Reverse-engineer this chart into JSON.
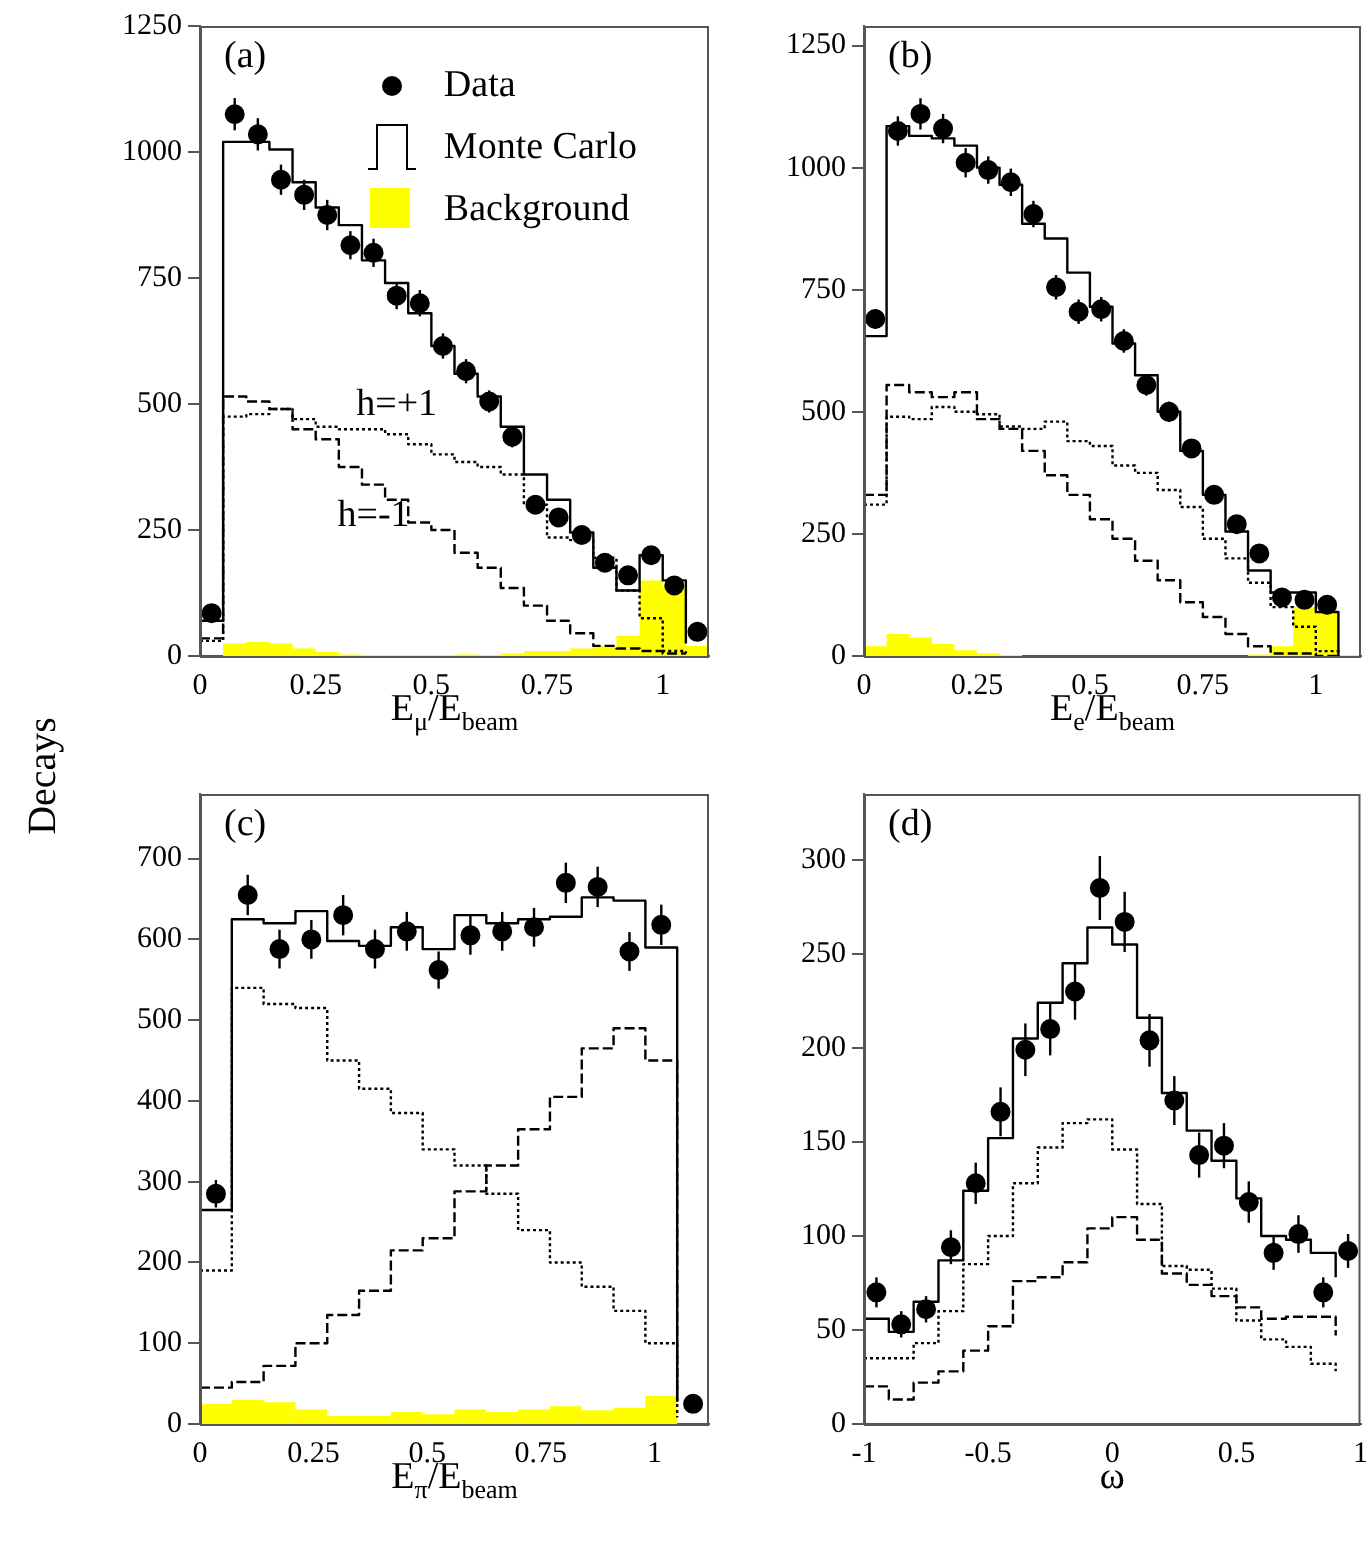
{
  "chart_data": [
    {
      "type": "histogram",
      "xlabel": "E$_{μ}$/E$_{beam}$",
      "ylabel": "Decays",
      "annotations": [
        "(a)"
      ],
      "legend": "top right",
      "xlim": [
        0,
        1.1
      ],
      "ylim": [
        0,
        1250
      ],
      "xticks": [
        0,
        0.25,
        0.5,
        0.75,
        1
      ],
      "yticks": [
        0,
        250,
        500,
        750,
        1000,
        1250
      ],
      "bins": [
        0,
        0.05,
        0.1,
        0.15,
        0.2,
        0.25,
        0.3,
        0.35,
        0.4,
        0.45,
        0.5,
        0.55,
        0.6,
        0.65,
        0.7,
        0.75,
        0.8,
        0.85,
        0.9,
        0.95,
        1,
        1.05,
        1.1
      ],
      "series": [
        {
          "name": "Data",
          "type": "scatter",
          "marker": "circle",
          "color": "#000000",
          "x": [
            0.025,
            0.075,
            0.125,
            0.175,
            0.225,
            0.275,
            0.325,
            0.375,
            0.425,
            0.475,
            0.525,
            0.575,
            0.625,
            0.675,
            0.725,
            0.775,
            0.825,
            0.875,
            0.925,
            0.975,
            1.025,
            1.075
          ],
          "values": [
            85,
            1075,
            1035,
            945,
            915,
            875,
            815,
            800,
            715,
            700,
            615,
            565,
            505,
            435,
            300,
            275,
            240,
            185,
            160,
            200,
            140,
            48
          ],
          "errors": [
            10,
            32,
            32,
            30,
            30,
            30,
            28,
            28,
            27,
            26,
            25,
            24,
            22,
            21,
            17,
            17,
            16,
            14,
            13,
            14,
            12,
            7
          ]
        },
        {
          "name": "Monte Carlo",
          "type": "step",
          "line_style": "solid",
          "x": [
            0,
            0.05,
            0.1,
            0.15,
            0.2,
            0.25,
            0.3,
            0.35,
            0.4,
            0.45,
            0.5,
            0.55,
            0.6,
            0.65,
            0.7,
            0.75,
            0.8,
            0.85,
            0.9,
            0.95,
            1,
            1.05
          ],
          "color": "#000000",
          "values": [
            70,
            1020,
            1020,
            1005,
            940,
            890,
            855,
            785,
            740,
            680,
            615,
            560,
            515,
            455,
            360,
            310,
            245,
            175,
            130,
            200,
            150,
            25
          ]
        },
        {
          "name": "h=+1",
          "type": "step",
          "line_style": "dotted",
          "x": [
            0,
            0.05,
            0.1,
            0.15,
            0.2,
            0.25,
            0.3,
            0.35,
            0.4,
            0.45,
            0.5,
            0.55,
            0.6,
            0.65,
            0.7,
            0.75,
            0.8,
            0.85,
            0.9,
            0.95,
            1,
            1.05
          ],
          "color": "#000000",
          "values": [
            30,
            475,
            480,
            490,
            470,
            455,
            450,
            450,
            440,
            420,
            400,
            385,
            375,
            360,
            300,
            235,
            230,
            195,
            130,
            75,
            10,
            5
          ]
        },
        {
          "name": "h=-1",
          "type": "step",
          "line_style": "dashed",
          "x": [
            0,
            0.05,
            0.1,
            0.15,
            0.2,
            0.25,
            0.3,
            0.35,
            0.4,
            0.45,
            0.5,
            0.55,
            0.6,
            0.65,
            0.7,
            0.75,
            0.8,
            0.85,
            0.9,
            0.95,
            1,
            1.05
          ],
          "color": "#000000",
          "values": [
            35,
            515,
            505,
            490,
            450,
            430,
            375,
            340,
            310,
            265,
            250,
            205,
            175,
            135,
            100,
            70,
            45,
            20,
            15,
            10,
            5,
            5
          ]
        },
        {
          "name": "Background",
          "color": "#ffff00",
          "values": [
            0,
            25,
            28,
            25,
            15,
            8,
            3,
            2,
            2,
            2,
            2,
            3,
            2,
            5,
            10,
            10,
            15,
            20,
            40,
            150,
            140,
            20
          ]
        }
      ]
    },
    {
      "type": "histogram",
      "xlabel": "E$_{e}$/E$_{beam}$",
      "annotations": [
        "(b)"
      ],
      "xlim": [
        0,
        1.1
      ],
      "ylim": [
        0,
        1290
      ],
      "xticks": [
        0,
        0.25,
        0.5,
        0.75,
        1
      ],
      "yticks": [
        0,
        250,
        500,
        750,
        1000,
        1250
      ],
      "bins": [
        0,
        0.05,
        0.1,
        0.15,
        0.2,
        0.25,
        0.3,
        0.35,
        0.4,
        0.45,
        0.5,
        0.55,
        0.6,
        0.65,
        0.7,
        0.75,
        0.8,
        0.85,
        0.9,
        0.95,
        1,
        1.05,
        1.1
      ],
      "series": [
        {
          "type": "scatter",
          "marker": "circle",
          "color": "#000000",
          "x": [
            0.025,
            0.075,
            0.125,
            0.175,
            0.225,
            0.275,
            0.325,
            0.375,
            0.425,
            0.475,
            0.525,
            0.575,
            0.625,
            0.675,
            0.725,
            0.775,
            0.825,
            0.875,
            0.925,
            0.975,
            1.025
          ],
          "values": [
            690,
            1075,
            1110,
            1080,
            1010,
            995,
            970,
            905,
            755,
            705,
            710,
            645,
            555,
            500,
            425,
            330,
            270,
            210,
            120,
            115,
            105
          ],
          "errors": [
            20,
            30,
            32,
            30,
            30,
            28,
            28,
            27,
            25,
            25,
            25,
            24,
            22,
            21,
            19,
            17,
            15,
            13,
            10,
            10,
            10
          ]
        },
        {
          "type": "step",
          "line_style": "solid",
          "x": [
            0,
            0.05,
            0.1,
            0.15,
            0.2,
            0.25,
            0.3,
            0.35,
            0.4,
            0.45,
            0.5,
            0.55,
            0.6,
            0.65,
            0.7,
            0.75,
            0.8,
            0.85,
            0.9,
            0.95,
            1,
            1.05
          ],
          "color": "#000000",
          "values": [
            655,
            1085,
            1065,
            1060,
            1045,
            1000,
            965,
            885,
            855,
            785,
            715,
            640,
            575,
            500,
            420,
            330,
            255,
            175,
            130,
            130,
            90,
            0
          ]
        },
        {
          "type": "step",
          "line_style": "dotted",
          "x": [
            0,
            0.05,
            0.1,
            0.15,
            0.2,
            0.25,
            0.3,
            0.35,
            0.4,
            0.45,
            0.5,
            0.55,
            0.6,
            0.65,
            0.7,
            0.75,
            0.8,
            0.85,
            0.9,
            0.95,
            1,
            1.05
          ],
          "color": "#000000",
          "values": [
            310,
            490,
            485,
            510,
            500,
            495,
            470,
            465,
            480,
            440,
            430,
            390,
            375,
            340,
            305,
            240,
            200,
            150,
            100,
            60,
            10,
            0
          ]
        },
        {
          "type": "step",
          "line_style": "dashed",
          "x": [
            0,
            0.05,
            0.1,
            0.15,
            0.2,
            0.25,
            0.3,
            0.35,
            0.4,
            0.45,
            0.5,
            0.55,
            0.6,
            0.65,
            0.7,
            0.75,
            0.8,
            0.85,
            0.9,
            0.95,
            1,
            1.05
          ],
          "color": "#000000",
          "values": [
            330,
            555,
            540,
            530,
            540,
            485,
            465,
            420,
            370,
            330,
            280,
            240,
            195,
            155,
            110,
            80,
            45,
            20,
            5,
            5,
            0,
            0
          ]
        },
        {
          "color": "#ffff00",
          "values": [
            20,
            45,
            38,
            25,
            12,
            5,
            2,
            0,
            0,
            0,
            0,
            0,
            0,
            0,
            0,
            0,
            0,
            3,
            20,
            100,
            90,
            2
          ]
        }
      ]
    },
    {
      "type": "histogram",
      "xlabel": "E$_{π}$/E$_{beam}$",
      "annotations": [
        "(c)"
      ],
      "xlim": [
        0,
        1.12
      ],
      "ylim": [
        0,
        780
      ],
      "xticks": [
        0,
        0.25,
        0.5,
        0.75,
        1
      ],
      "yticks": [
        0,
        100,
        200,
        300,
        400,
        500,
        600,
        700
      ],
      "bins": [
        0,
        0.07,
        0.14,
        0.21,
        0.28,
        0.35,
        0.42,
        0.49,
        0.56,
        0.63,
        0.7,
        0.77,
        0.84,
        0.91,
        0.98,
        1.05,
        1.12
      ],
      "series": [
        {
          "type": "scatter",
          "marker": "circle",
          "color": "#000000",
          "x": [
            0.035,
            0.105,
            0.175,
            0.245,
            0.315,
            0.385,
            0.455,
            0.525,
            0.595,
            0.665,
            0.735,
            0.805,
            0.875,
            0.945,
            1.015,
            1.085
          ],
          "values": [
            285,
            655,
            588,
            600,
            630,
            588,
            610,
            562,
            605,
            610,
            615,
            670,
            665,
            585,
            618,
            25
          ],
          "errors": [
            17,
            25,
            24,
            24,
            25,
            24,
            24,
            23,
            24,
            24,
            24,
            25,
            25,
            24,
            25,
            5
          ]
        },
        {
          "type": "step",
          "line_style": "solid",
          "x": [
            0,
            0.07,
            0.14,
            0.21,
            0.28,
            0.35,
            0.42,
            0.49,
            0.56,
            0.63,
            0.7,
            0.77,
            0.84,
            0.91,
            0.98,
            1.05
          ],
          "color": "#000000",
          "values": [
            265,
            625,
            620,
            635,
            598,
            592,
            615,
            588,
            630,
            620,
            625,
            628,
            652,
            648,
            590,
            28
          ]
        },
        {
          "type": "step",
          "line_style": "dotted",
          "x": [
            0,
            0.07,
            0.14,
            0.21,
            0.28,
            0.35,
            0.42,
            0.49,
            0.56,
            0.63,
            0.7,
            0.77,
            0.84,
            0.91,
            0.98,
            1.05
          ],
          "color": "#000000",
          "values": [
            190,
            540,
            520,
            515,
            450,
            415,
            385,
            340,
            320,
            285,
            240,
            200,
            170,
            140,
            100,
            8
          ]
        },
        {
          "type": "step",
          "line_style": "dashed",
          "x": [
            0,
            0.07,
            0.14,
            0.21,
            0.28,
            0.35,
            0.42,
            0.49,
            0.56,
            0.63,
            0.7,
            0.77,
            0.84,
            0.91,
            0.98,
            1.05
          ],
          "color": "#000000",
          "values": [
            45,
            52,
            72,
            100,
            135,
            165,
            215,
            230,
            288,
            320,
            365,
            405,
            465,
            490,
            450,
            28
          ]
        },
        {
          "color": "#ffff00",
          "values": [
            25,
            30,
            27,
            18,
            10,
            10,
            15,
            12,
            18,
            15,
            18,
            22,
            17,
            20,
            35,
            0
          ]
        }
      ]
    },
    {
      "type": "step",
      "xlabel": "ω",
      "annotations": [
        "(d)"
      ],
      "xlim": [
        -1,
        1
      ],
      "ylim": [
        0,
        335
      ],
      "xticks": [
        -1,
        -0.5,
        0,
        0.5,
        1
      ],
      "yticks": [
        0,
        50,
        100,
        150,
        200,
        250,
        300
      ],
      "series": [
        {
          "type": "scatter",
          "marker": "circle",
          "color": "#000000",
          "x": [
            -0.95,
            -0.85,
            -0.75,
            -0.65,
            -0.55,
            -0.45,
            -0.35,
            -0.25,
            -0.15,
            -0.05,
            0.05,
            0.15,
            0.25,
            0.35,
            0.45,
            0.55,
            0.65,
            0.75,
            0.85,
            0.95
          ],
          "values": [
            70,
            53,
            61,
            94,
            128,
            166,
            199,
            210,
            230,
            285,
            267,
            204,
            172,
            143,
            148,
            118,
            91,
            101,
            70,
            92
          ],
          "errors": [
            8,
            7,
            7,
            9,
            11,
            13,
            14,
            14,
            15,
            17,
            16,
            14,
            13,
            12,
            12,
            11,
            9,
            10,
            8,
            9
          ]
        },
        {
          "line_style": "solid",
          "x": [
            -1,
            -0.9,
            -0.8,
            -0.7,
            -0.6,
            -0.5,
            -0.4,
            -0.3,
            -0.2,
            -0.1,
            0,
            0.1,
            0.2,
            0.3,
            0.4,
            0.5,
            0.6,
            0.7,
            0.8,
            0.9
          ],
          "color": "#000000",
          "values": [
            56,
            49,
            65,
            87,
            124,
            152,
            205,
            224,
            245,
            264,
            255,
            216,
            176,
            156,
            140,
            120,
            100,
            98,
            91,
            78
          ]
        },
        {
          "line_style": "dotted",
          "x": [
            -1,
            -0.9,
            -0.8,
            -0.7,
            -0.6,
            -0.5,
            -0.4,
            -0.3,
            -0.2,
            -0.1,
            0,
            0.1,
            0.2,
            0.3,
            0.4,
            0.5,
            0.6,
            0.7,
            0.8,
            0.9
          ],
          "color": "#000000",
          "values": [
            35,
            35,
            43,
            60,
            85,
            100,
            128,
            147,
            160,
            162,
            146,
            117,
            84,
            82,
            72,
            55,
            45,
            41,
            32,
            28
          ]
        },
        {
          "line_style": "dashed",
          "x": [
            -1,
            -0.9,
            -0.8,
            -0.7,
            -0.6,
            -0.5,
            -0.4,
            -0.3,
            -0.2,
            -0.1,
            0,
            0.1,
            0.2,
            0.3,
            0.4,
            0.5,
            0.6,
            0.7,
            0.8,
            0.9
          ],
          "color": "#000000",
          "values": [
            20,
            13,
            22,
            28,
            39,
            52,
            76,
            78,
            86,
            104,
            110,
            98,
            80,
            74,
            68,
            62,
            56,
            57,
            57,
            47
          ]
        }
      ]
    }
  ]
}
